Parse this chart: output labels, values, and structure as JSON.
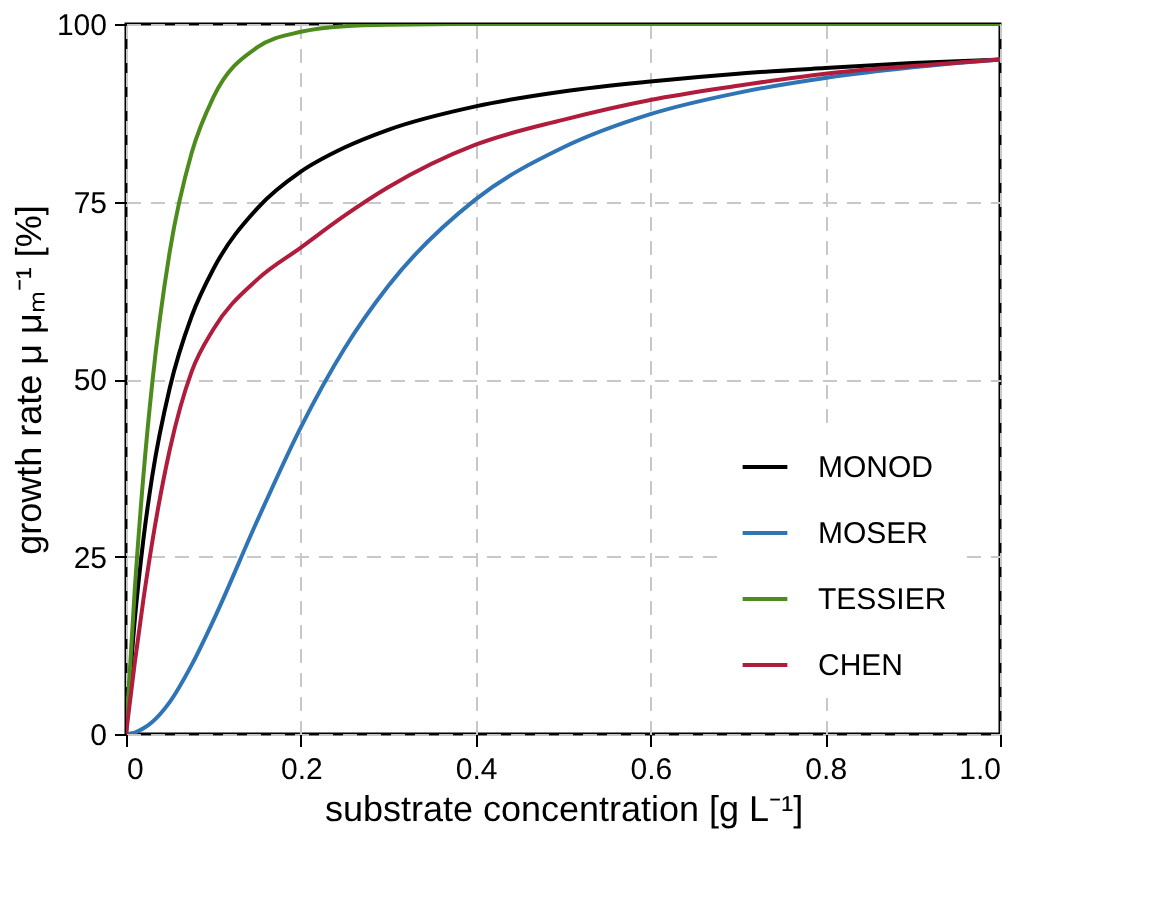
{
  "chart_data": {
    "type": "line",
    "xlabel": "substrate concentration [g L⁻¹]",
    "ylabel": "growth rate μ μₘ⁻¹ [%]",
    "x": [
      0,
      0.01,
      0.02,
      0.03,
      0.05,
      0.075,
      0.1,
      0.15,
      0.2,
      0.25,
      0.3,
      0.4,
      0.5,
      0.6,
      0.7,
      0.8,
      0.9,
      1.0
    ],
    "series": [
      {
        "name": "MONOD",
        "color": "#000000",
        "values": [
          0,
          16.0,
          27.5,
          36.3,
          48.7,
          58.8,
          65.5,
          74.0,
          79.2,
          82.6,
          85.1,
          88.4,
          90.5,
          91.9,
          93.0,
          93.8,
          94.5,
          95.0
        ]
      },
      {
        "name": "MOSER",
        "color": "#2f74b5",
        "values": [
          0,
          0.2,
          0.8,
          1.7,
          4.5,
          9.7,
          16.0,
          30.0,
          43.2,
          54.3,
          63.1,
          75.3,
          82.6,
          87.3,
          90.3,
          92.4,
          93.9,
          95.0
        ]
      },
      {
        "name": "TESSIER",
        "color": "#4d8c1c",
        "values": [
          0,
          20.3,
          36.5,
          49.4,
          67.9,
          81.8,
          89.7,
          96.7,
          98.9,
          99.7,
          99.9,
          100,
          100,
          100,
          100,
          100,
          100,
          100
        ]
      },
      {
        "name": "CHEN",
        "color": "#b01c3c",
        "values": [
          0,
          10,
          19,
          27,
          40,
          51,
          57,
          64,
          68.5,
          73,
          77,
          83,
          86.5,
          89.3,
          91.3,
          93,
          94.1,
          95
        ]
      }
    ],
    "xlim": [
      0,
      1.0
    ],
    "ylim": [
      0,
      100
    ],
    "xticks": [
      0,
      0.2,
      0.4,
      0.6,
      0.8,
      {
        "value": 1.0,
        "label": "1.0"
      }
    ],
    "yticks": [
      0,
      25,
      50,
      75,
      100
    ],
    "grid": true,
    "legend": "bottom right",
    "line_style": "solid",
    "marker": "none"
  }
}
